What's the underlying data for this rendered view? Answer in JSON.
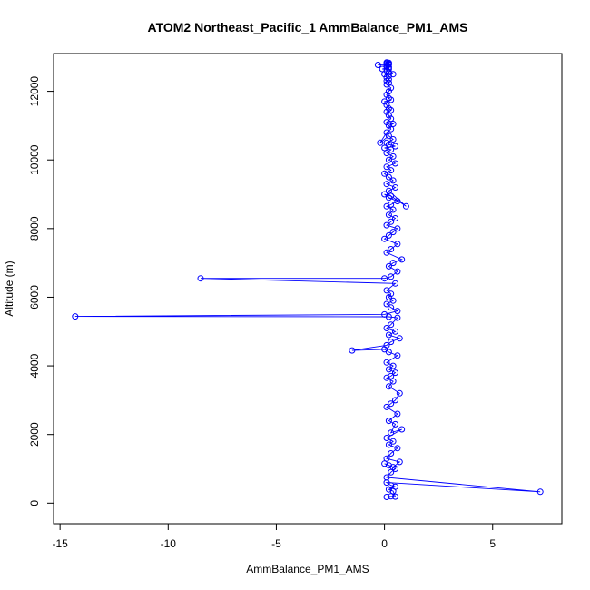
{
  "chart_data": {
    "type": "line",
    "title": "ATOM2 Northeast_Pacific_1 AmmBalance_PM1_AMS",
    "xlabel": "AmmBalance_PM1_AMS",
    "ylabel": "Altitude (m)",
    "xlim": [
      -15.3,
      8.2
    ],
    "ylim": [
      -600,
      13100
    ],
    "x_ticks": [
      -15,
      -10,
      -5,
      0,
      5
    ],
    "y_ticks": [
      0,
      2000,
      4000,
      6000,
      8000,
      10000,
      12000
    ],
    "grid": false,
    "markers": "open-circle",
    "color": "#0000ff",
    "series": [
      {
        "x": [
          0.1,
          0.3,
          0.5,
          0.4,
          0.2,
          0.5,
          0.3,
          0.1,
          7.2,
          0.1,
          0.3,
          0.5,
          0.2,
          0.0,
          0.4,
          0.7,
          0.1,
          0.3,
          0.6,
          0.2,
          0.4,
          0.1,
          0.8,
          0.3,
          0.5,
          0.2,
          0.6,
          0.1,
          0.3,
          0.5,
          0.7,
          0.2,
          0.4,
          0.1,
          0.3,
          0.5,
          0.2,
          0.4,
          0.1,
          0.6,
          0.2,
          0.0,
          -1.5,
          0.1,
          0.3,
          0.7,
          0.2,
          0.5,
          0.1,
          0.3,
          0.6,
          0.2,
          -14.3,
          0.0,
          0.6,
          0.3,
          0.1,
          0.4,
          0.2,
          0.3,
          0.1,
          0.5,
          -8.5,
          0.0,
          0.3,
          0.6,
          0.2,
          0.4,
          0.8,
          0.1,
          0.3,
          0.6,
          0.0,
          0.2,
          0.4,
          0.6,
          0.1,
          0.3,
          0.5,
          0.2,
          0.4,
          0.1,
          0.3,
          0.6,
          0.2,
          0.0,
          0.3,
          1.0,
          0.2,
          0.5,
          0.1,
          0.4,
          0.2,
          0.0,
          0.3,
          0.1,
          0.5,
          0.2,
          0.4,
          0.1,
          0.3,
          0.0,
          0.5,
          0.2,
          0.1,
          0.4,
          0.2,
          -0.2,
          0.1,
          0.3,
          0.2,
          0.4,
          0.1,
          0.3,
          0.2,
          0.1,
          0.3,
          0.2,
          0.1,
          0.0,
          0.3,
          0.2,
          0.1,
          0.2,
          0.3,
          0.1,
          0.2,
          0.1,
          0.2,
          0.1,
          0.2,
          0.0,
          0.2,
          0.1,
          0.2,
          -0.1,
          0.2,
          0.1,
          0.4,
          0.1,
          0.2,
          -0.3,
          0.1,
          0.2,
          0.1,
          0.2,
          0.1
        ],
        "y": [
          180,
          200,
          190,
          350,
          400,
          480,
          520,
          600,
          330,
          750,
          900,
          1000,
          1100,
          1150,
          1050,
          1200,
          1300,
          1450,
          1600,
          1700,
          1800,
          1900,
          2150,
          2050,
          2300,
          2400,
          2600,
          2800,
          2900,
          3000,
          3200,
          3400,
          3550,
          3650,
          3700,
          3800,
          3900,
          4000,
          4100,
          4300,
          4400,
          4480,
          4450,
          4600,
          4700,
          4800,
          4900,
          5000,
          5100,
          5200,
          5400,
          5430,
          5440,
          5500,
          5600,
          5700,
          5800,
          5900,
          6000,
          6100,
          6200,
          6400,
          6550,
          6550,
          6600,
          6750,
          6900,
          7000,
          7100,
          7300,
          7400,
          7550,
          7700,
          7800,
          7900,
          8000,
          8100,
          8200,
          8300,
          8400,
          8550,
          8650,
          8700,
          8800,
          8900,
          9000,
          8950,
          8650,
          9100,
          9200,
          9300,
          9400,
          9500,
          9600,
          9700,
          9800,
          9900,
          10000,
          10100,
          10200,
          10300,
          10350,
          10400,
          10450,
          10500,
          10600,
          10700,
          10500,
          10800,
          10900,
          11000,
          11050,
          11100,
          11200,
          11300,
          11400,
          11450,
          11500,
          11600,
          11700,
          11750,
          11800,
          11900,
          12000,
          12100,
          12200,
          12250,
          12300,
          12350,
          12400,
          12450,
          12500,
          12550,
          12600,
          12650,
          12650,
          12700,
          12720,
          12500,
          12750,
          12780,
          12770,
          12790,
          12800,
          12820,
          12830,
          12840
        ]
      }
    ]
  }
}
